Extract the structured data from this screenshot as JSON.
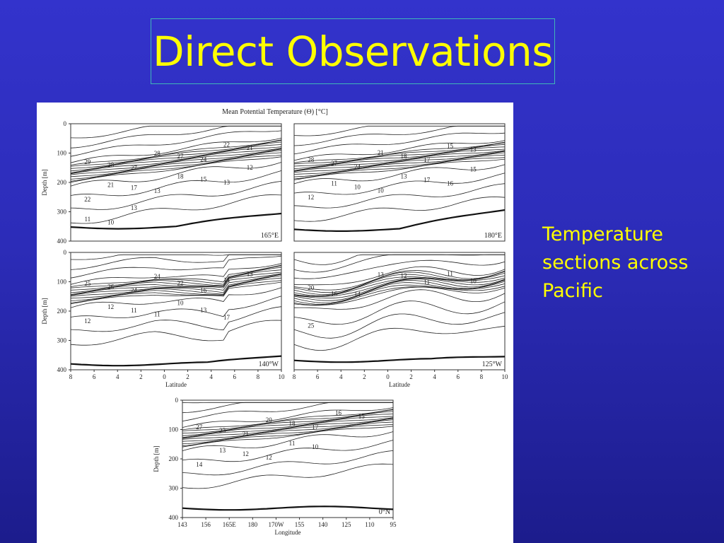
{
  "slide": {
    "title": "Direct Observations",
    "caption_lines": [
      "Temperature",
      "sections across",
      "Pacific"
    ]
  },
  "colors": {
    "background": "#3333cc",
    "title_text": "#ffff00",
    "title_border": "#3fb7b7"
  },
  "chart_data": [
    {
      "type": "contour",
      "figure_title": "Mean Potential Temperature (Θ) [°C]",
      "panel_label": "165°E",
      "ylabel": "Depth [m]",
      "ylim": [
        400,
        0
      ],
      "yticks": [
        "0",
        "100",
        "200",
        "300",
        "400"
      ],
      "xlim": [
        -8,
        10
      ],
      "xticks": [],
      "contour_labels": [
        "29",
        "28",
        "27",
        "28",
        "27",
        "24",
        "22",
        "21",
        "22",
        "21",
        "17",
        "13",
        "18",
        "15",
        "13",
        "12",
        "11",
        "10",
        "13"
      ]
    },
    {
      "type": "contour",
      "panel_label": "180°E",
      "ylim": [
        400,
        0
      ],
      "yticks": [],
      "xlim": [
        -8,
        10
      ],
      "xticks": [],
      "contour_labels": [
        "28",
        "27",
        "24",
        "21",
        "18",
        "17",
        "15",
        "13",
        "12",
        "11",
        "10",
        "10",
        "13",
        "17",
        "16",
        "15"
      ]
    },
    {
      "type": "contour",
      "panel_label": "140°W",
      "ylabel": "Depth [m]",
      "xlabel": "Latitude",
      "ylim": [
        400,
        0
      ],
      "yticks": [
        "0",
        "100",
        "200",
        "300",
        "400"
      ],
      "xlim": [
        -8,
        10
      ],
      "xticks": [
        "8",
        "6",
        "4",
        "2",
        "0",
        "2",
        "4",
        "6",
        "8",
        "10"
      ],
      "contour_labels": [
        "25",
        "26",
        "24",
        "24",
        "22",
        "16",
        "14",
        "13",
        "12",
        "12",
        "11",
        "11",
        "10",
        "13",
        "17"
      ]
    },
    {
      "type": "contour",
      "panel_label": "125°W",
      "xlabel": "Latitude",
      "ylim": [
        400,
        0
      ],
      "yticks": [],
      "xlim": [
        -8,
        10
      ],
      "xticks": [
        "8",
        "6",
        "4",
        "2",
        "0",
        "2",
        "4",
        "6",
        "8",
        "10"
      ],
      "contour_labels": [
        "20",
        "16",
        "14",
        "13",
        "12",
        "11",
        "11",
        "10",
        "25"
      ]
    },
    {
      "type": "contour",
      "panel_label": "0°N",
      "xlabel": "Longitude",
      "ylabel": "Depth [m]",
      "ylim": [
        400,
        0
      ],
      "yticks": [
        "0",
        "100",
        "200",
        "300",
        "400"
      ],
      "xticks": [
        "143",
        "156",
        "165E",
        "180",
        "170W",
        "155",
        "140",
        "125",
        "110",
        "95"
      ],
      "contour_labels": [
        "27",
        "23",
        "21",
        "20",
        "18",
        "17",
        "16",
        "15",
        "14",
        "13",
        "12",
        "12",
        "11",
        "10"
      ]
    }
  ]
}
